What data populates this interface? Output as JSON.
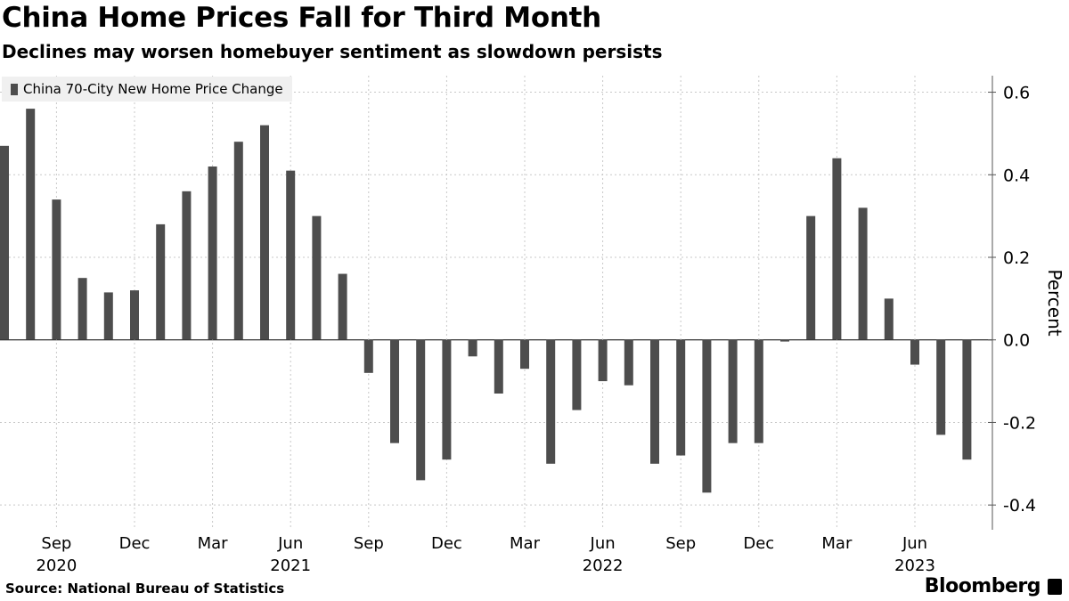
{
  "title": "China Home Prices Fall for Third Month",
  "subtitle": "Declines may worsen homebuyer sentiment as slowdown persists",
  "source": "Source: National Bureau of Statistics",
  "brand": "Bloomberg",
  "chart_data": {
    "type": "bar",
    "title": "China Home Prices Fall for Third Month",
    "ylabel": "Percent",
    "ylim": [
      -0.46,
      0.64
    ],
    "yticks": [
      "0.6",
      "0.4",
      "0.2",
      "0.0",
      "-0.2",
      "-0.4"
    ],
    "ytick_values": [
      0.6,
      0.4,
      0.2,
      0.0,
      -0.2,
      -0.4
    ],
    "y_axis_side": "right",
    "grid": true,
    "legend_placement": "top-left",
    "bar_color": "#4d4d4d",
    "categories": [
      "Jul 2020",
      "Aug 2020",
      "Sep 2020",
      "Oct 2020",
      "Nov 2020",
      "Dec 2020",
      "Jan 2021",
      "Feb 2021",
      "Mar 2021",
      "Apr 2021",
      "May 2021",
      "Jun 2021",
      "Jul 2021",
      "Aug 2021",
      "Sep 2021",
      "Oct 2021",
      "Nov 2021",
      "Dec 2021",
      "Jan 2022",
      "Feb 2022",
      "Mar 2022",
      "Apr 2022",
      "May 2022",
      "Jun 2022",
      "Jul 2022",
      "Aug 2022",
      "Sep 2022",
      "Oct 2022",
      "Nov 2022",
      "Dec 2022",
      "Jan 2023",
      "Feb 2023",
      "Mar 2023",
      "Apr 2023",
      "May 2023",
      "Jun 2023",
      "Jul 2023",
      "Aug 2023"
    ],
    "series": [
      {
        "name": "China 70-City New Home Price Change",
        "values": [
          0.47,
          0.56,
          0.34,
          0.15,
          0.115,
          0.12,
          0.28,
          0.36,
          0.42,
          0.48,
          0.52,
          0.41,
          0.3,
          0.16,
          -0.08,
          -0.25,
          -0.34,
          -0.29,
          -0.04,
          -0.13,
          -0.07,
          -0.3,
          -0.17,
          -0.1,
          -0.11,
          -0.3,
          -0.28,
          -0.37,
          -0.25,
          -0.25,
          -0.004,
          0.3,
          0.44,
          0.32,
          0.1,
          -0.06,
          -0.23,
          -0.29
        ]
      }
    ],
    "xticks": [
      {
        "month": "Sep",
        "year": "2020",
        "index": 2
      },
      {
        "month": "Dec",
        "year": "",
        "index": 5
      },
      {
        "month": "Mar",
        "year": "",
        "index": 8
      },
      {
        "month": "Jun",
        "year": "2021",
        "index": 11
      },
      {
        "month": "Sep",
        "year": "",
        "index": 14
      },
      {
        "month": "Dec",
        "year": "",
        "index": 17
      },
      {
        "month": "Mar",
        "year": "",
        "index": 20
      },
      {
        "month": "Jun",
        "year": "2022",
        "index": 23
      },
      {
        "month": "Sep",
        "year": "",
        "index": 26
      },
      {
        "month": "Dec",
        "year": "",
        "index": 29
      },
      {
        "month": "Mar",
        "year": "",
        "index": 32
      },
      {
        "month": "Jun",
        "year": "2023",
        "index": 35
      }
    ]
  }
}
